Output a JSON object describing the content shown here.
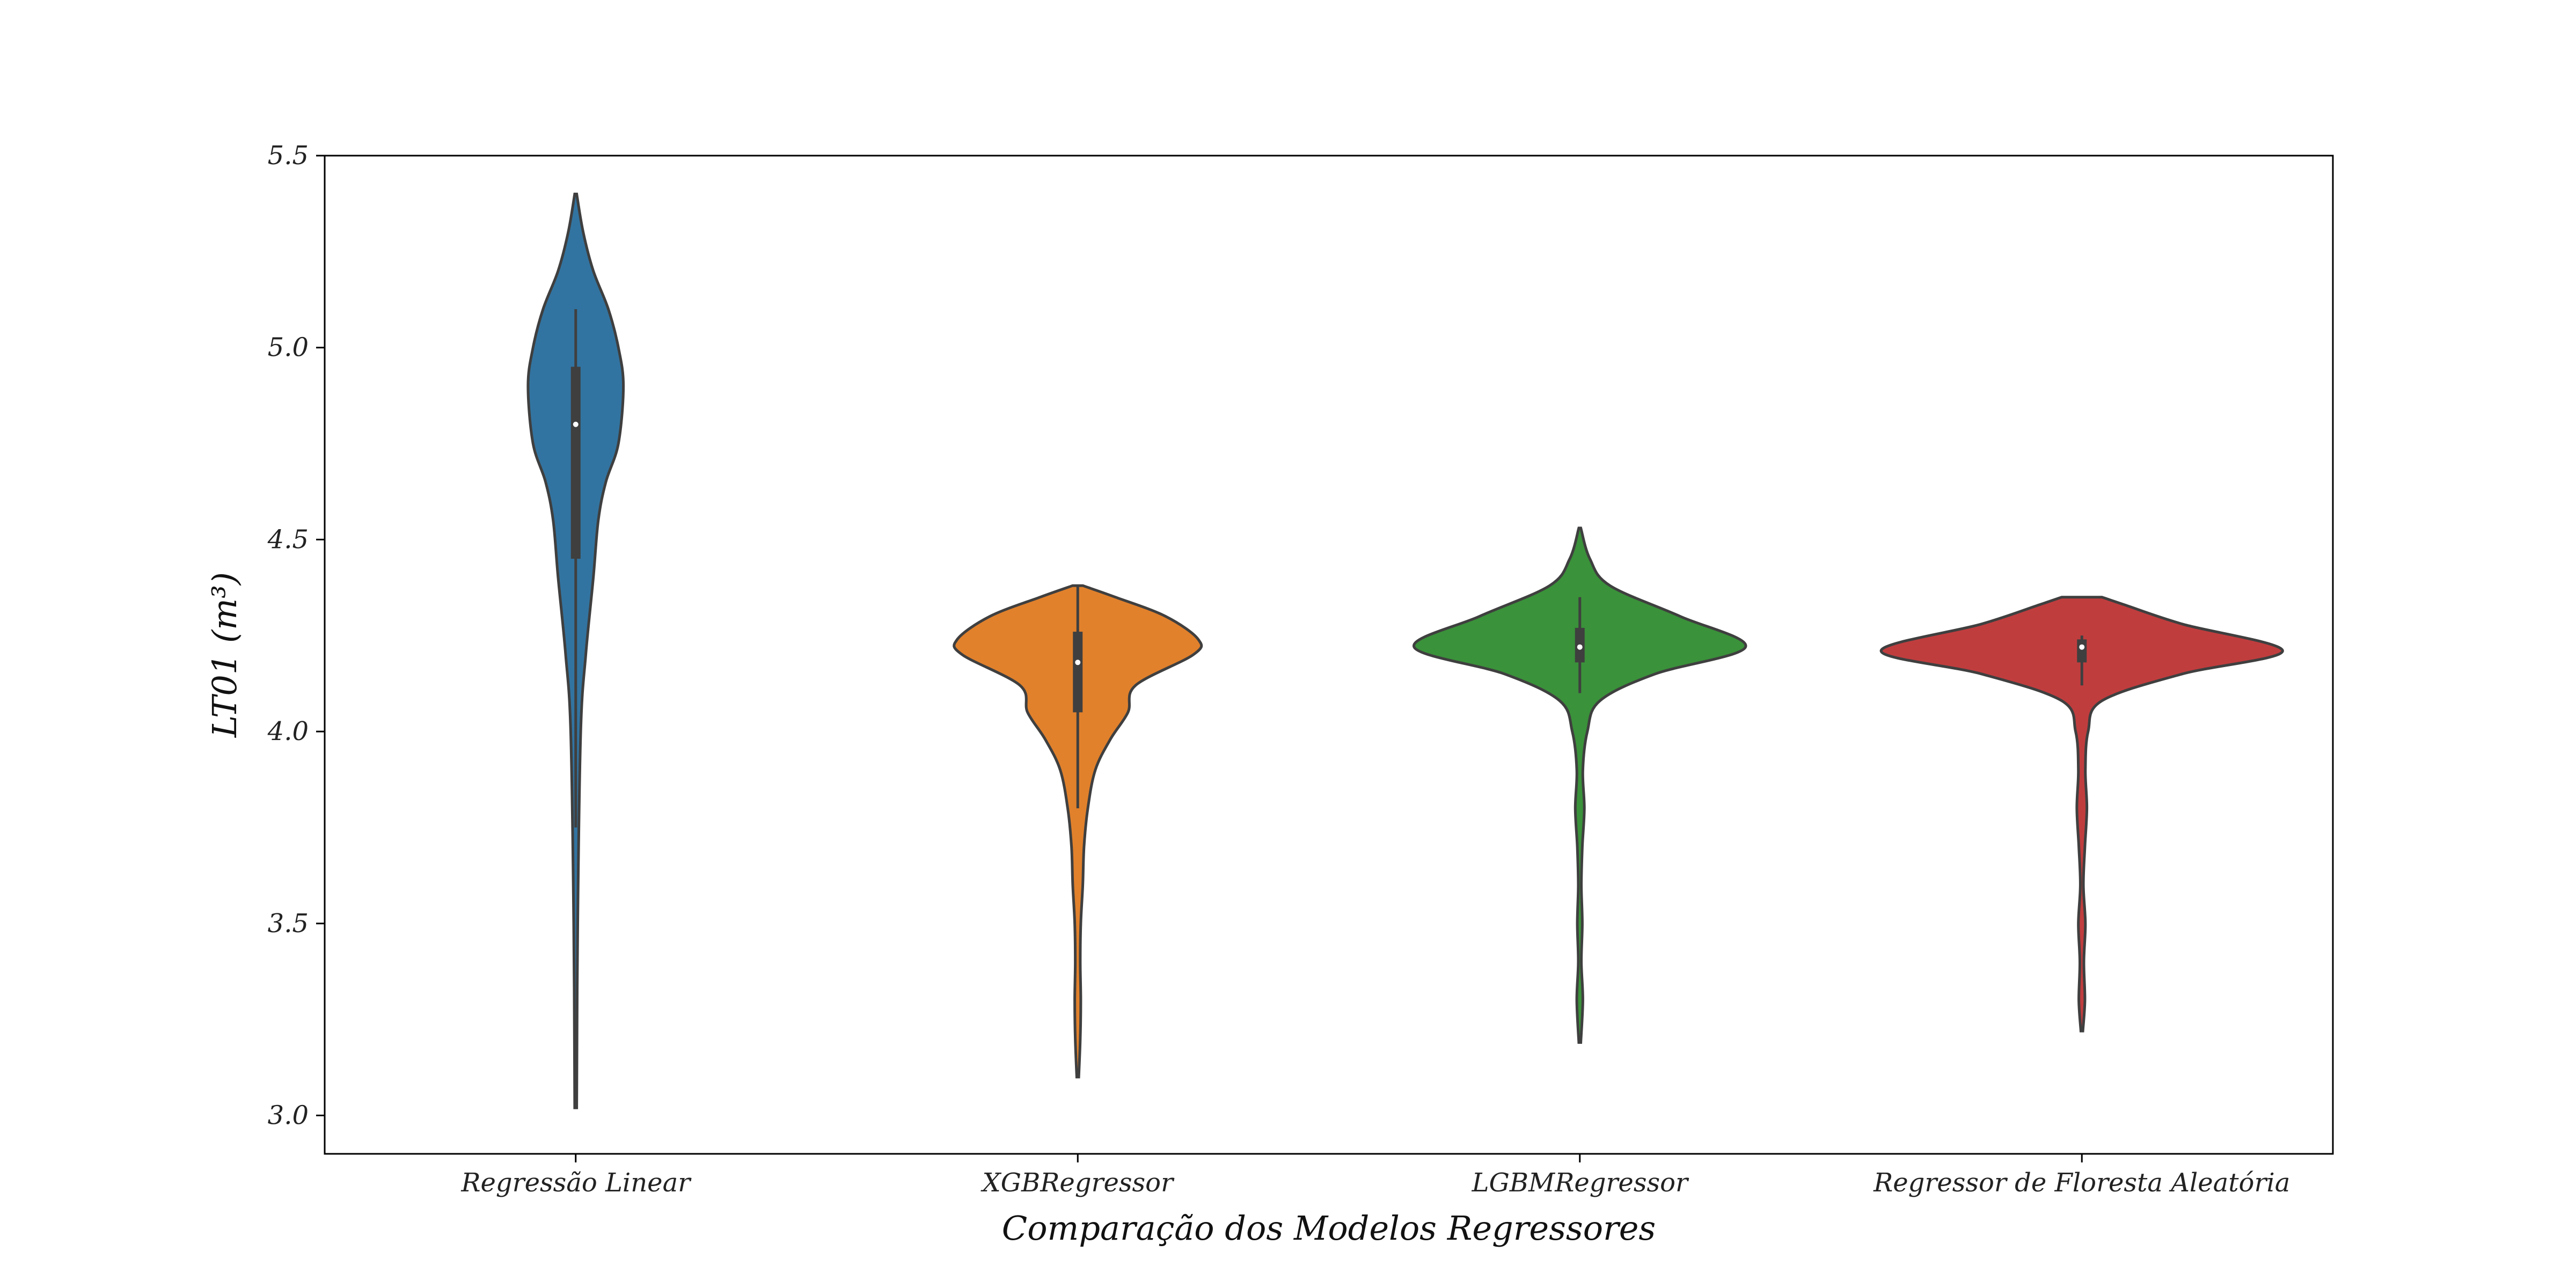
{
  "chart_data": {
    "type": "violin",
    "xlabel": "Comparação dos Modelos Regressores",
    "ylabel": "LT01 (m³)",
    "ylim": [
      2.9,
      5.5
    ],
    "yticks": [
      3.0,
      3.5,
      4.0,
      4.5,
      5.0,
      5.5
    ],
    "ytick_labels": [
      "3.0",
      "3.5",
      "4.0",
      "4.5",
      "5.0",
      "5.5"
    ],
    "grid": false,
    "categories": [
      "Regressão Linear",
      "XGBRegressor",
      "LGBMRegressor",
      "Regressor de Floresta Aleatória"
    ],
    "series": [
      {
        "color": "#3274a1",
        "min": 3.02,
        "max": 5.4,
        "q1": 4.45,
        "median": 4.8,
        "q3": 4.95,
        "whisker_low": 3.75,
        "whisker_high": 5.1,
        "density": [
          [
            3.02,
            0.004
          ],
          [
            3.5,
            0.008
          ],
          [
            4.0,
            0.02
          ],
          [
            4.2,
            0.04
          ],
          [
            4.4,
            0.07
          ],
          [
            4.55,
            0.09
          ],
          [
            4.65,
            0.12
          ],
          [
            4.75,
            0.17
          ],
          [
            4.9,
            0.19
          ],
          [
            5.0,
            0.17
          ],
          [
            5.1,
            0.13
          ],
          [
            5.2,
            0.07
          ],
          [
            5.3,
            0.03
          ],
          [
            5.4,
            0.004
          ]
        ]
      },
      {
        "color": "#e1812c",
        "min": 3.1,
        "max": 4.38,
        "q1": 4.05,
        "median": 4.18,
        "q3": 4.26,
        "whisker_low": 3.8,
        "whisker_high": 4.38,
        "density": [
          [
            3.1,
            0.004
          ],
          [
            3.2,
            0.01
          ],
          [
            3.3,
            0.012
          ],
          [
            3.4,
            0.01
          ],
          [
            3.5,
            0.012
          ],
          [
            3.6,
            0.02
          ],
          [
            3.7,
            0.025
          ],
          [
            3.8,
            0.04
          ],
          [
            3.9,
            0.07
          ],
          [
            3.98,
            0.13
          ],
          [
            4.05,
            0.2
          ],
          [
            4.12,
            0.23
          ],
          [
            4.2,
            0.46
          ],
          [
            4.24,
            0.48
          ],
          [
            4.3,
            0.35
          ],
          [
            4.35,
            0.15
          ],
          [
            4.38,
            0.02
          ]
        ]
      },
      {
        "color": "#3a923a",
        "min": 3.19,
        "max": 4.53,
        "q1": 4.18,
        "median": 4.22,
        "q3": 4.27,
        "whisker_low": 4.1,
        "whisker_high": 4.35,
        "density": [
          [
            3.19,
            0.004
          ],
          [
            3.3,
            0.012
          ],
          [
            3.4,
            0.006
          ],
          [
            3.5,
            0.01
          ],
          [
            3.6,
            0.006
          ],
          [
            3.7,
            0.01
          ],
          [
            3.8,
            0.018
          ],
          [
            3.9,
            0.012
          ],
          [
            4.0,
            0.03
          ],
          [
            4.08,
            0.08
          ],
          [
            4.15,
            0.3
          ],
          [
            4.22,
            0.66
          ],
          [
            4.3,
            0.4
          ],
          [
            4.38,
            0.12
          ],
          [
            4.45,
            0.04
          ],
          [
            4.53,
            0.004
          ]
        ]
      },
      {
        "color": "#c03d3e",
        "min": 3.22,
        "max": 4.35,
        "q1": 4.18,
        "median": 4.22,
        "q3": 4.24,
        "whisker_low": 4.12,
        "whisker_high": 4.25,
        "density": [
          [
            3.22,
            0.004
          ],
          [
            3.3,
            0.012
          ],
          [
            3.4,
            0.008
          ],
          [
            3.5,
            0.014
          ],
          [
            3.6,
            0.006
          ],
          [
            3.7,
            0.012
          ],
          [
            3.8,
            0.02
          ],
          [
            3.9,
            0.014
          ],
          [
            4.0,
            0.025
          ],
          [
            4.08,
            0.08
          ],
          [
            4.15,
            0.4
          ],
          [
            4.21,
            0.8
          ],
          [
            4.28,
            0.4
          ],
          [
            4.33,
            0.17
          ],
          [
            4.35,
            0.08
          ]
        ]
      }
    ]
  }
}
